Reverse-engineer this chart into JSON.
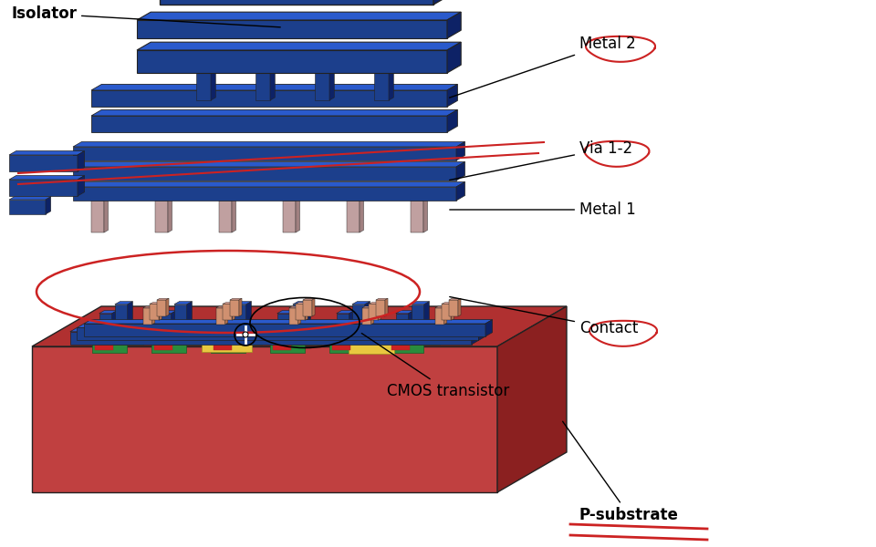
{
  "background_color": "#ffffff",
  "labels": {
    "isolator": "Isolator",
    "metal2": "Metal 2",
    "via12": "Via 1-2",
    "metal1": "Metal 1",
    "contact": "Contact",
    "cmos": "CMOS transistor",
    "psub": "P-substrate"
  },
  "colors": {
    "blue_front": "#1c3f8c",
    "blue_top": "#2a5acc",
    "blue_side": "#0d2266",
    "sub_front": "#c04040",
    "sub_top": "#b03030",
    "sub_side": "#8b2020",
    "sub_top2": "#cc5555",
    "green": "#2a8c3c",
    "green_top": "#33aa4a",
    "yellow": "#e8c840",
    "red_pad_front": "#cc2222",
    "red_pad_top": "#dd3333",
    "salmon": "#d4a080",
    "red_line": "#cc2222",
    "white": "#ffffff",
    "black": "#000000"
  },
  "figsize": [
    9.6,
    6.0
  ],
  "dpi": 100
}
